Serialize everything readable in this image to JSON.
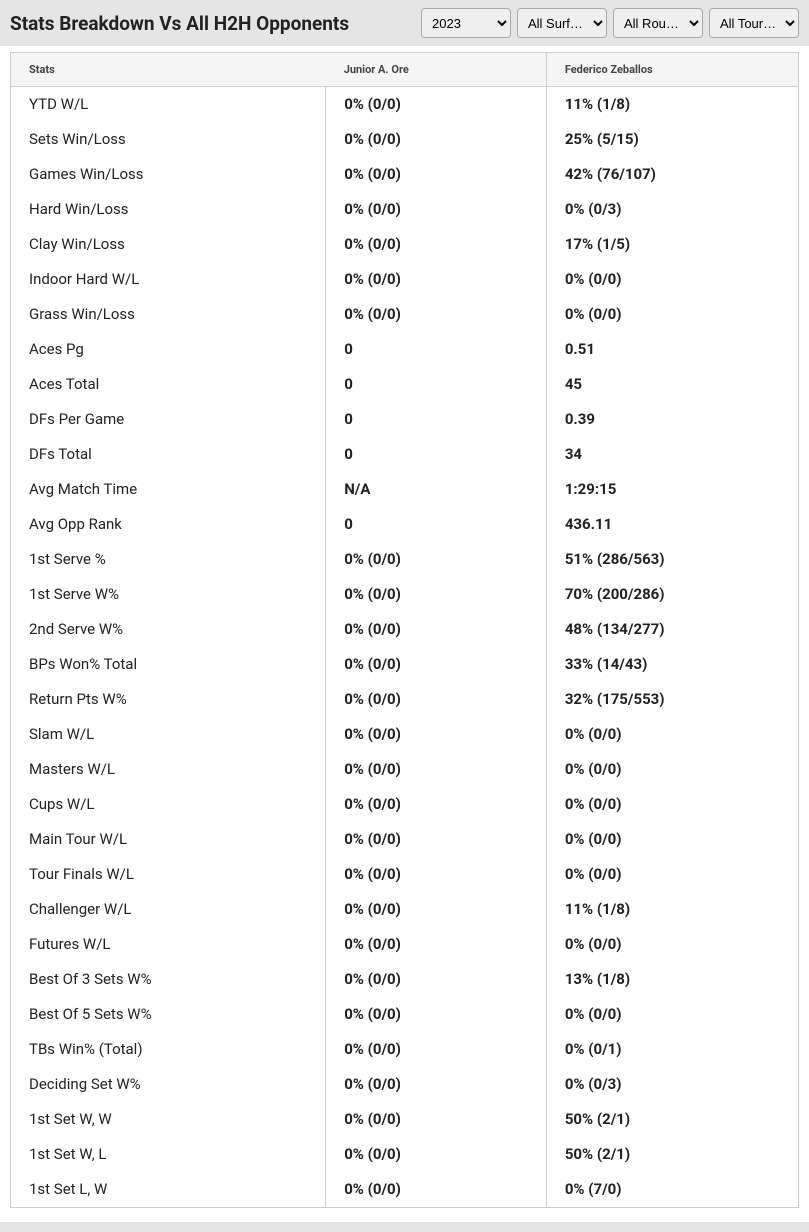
{
  "header": {
    "title": "Stats Breakdown Vs All H2H Opponents"
  },
  "filters": {
    "year": {
      "selected": "2023"
    },
    "surface": {
      "selected": "All Surf…"
    },
    "round": {
      "selected": "All Rou…"
    },
    "tour": {
      "selected": "All Tour…"
    }
  },
  "table": {
    "columns": {
      "stats": "Stats",
      "player1": "Junior A. Ore",
      "player2": "Federico Zeballos"
    },
    "header_bg": "#f5f5f5",
    "border_color": "#cccccc",
    "row_fontsize": 15,
    "header_fontsize": 11,
    "rows": [
      {
        "label": "YTD W/L",
        "p1": "0% (0/0)",
        "p2": "11% (1/8)"
      },
      {
        "label": "Sets Win/Loss",
        "p1": "0% (0/0)",
        "p2": "25% (5/15)"
      },
      {
        "label": "Games Win/Loss",
        "p1": "0% (0/0)",
        "p2": "42% (76/107)"
      },
      {
        "label": "Hard Win/Loss",
        "p1": "0% (0/0)",
        "p2": "0% (0/3)"
      },
      {
        "label": "Clay Win/Loss",
        "p1": "0% (0/0)",
        "p2": "17% (1/5)"
      },
      {
        "label": "Indoor Hard W/L",
        "p1": "0% (0/0)",
        "p2": "0% (0/0)"
      },
      {
        "label": "Grass Win/Loss",
        "p1": "0% (0/0)",
        "p2": "0% (0/0)"
      },
      {
        "label": "Aces Pg",
        "p1": "0",
        "p2": "0.51"
      },
      {
        "label": "Aces Total",
        "p1": "0",
        "p2": "45"
      },
      {
        "label": "DFs Per Game",
        "p1": "0",
        "p2": "0.39"
      },
      {
        "label": "DFs Total",
        "p1": "0",
        "p2": "34"
      },
      {
        "label": "Avg Match Time",
        "p1": "N/A",
        "p2": "1:29:15"
      },
      {
        "label": "Avg Opp Rank",
        "p1": "0",
        "p2": "436.11"
      },
      {
        "label": "1st Serve %",
        "p1": "0% (0/0)",
        "p2": "51% (286/563)"
      },
      {
        "label": "1st Serve W%",
        "p1": "0% (0/0)",
        "p2": "70% (200/286)"
      },
      {
        "label": "2nd Serve W%",
        "p1": "0% (0/0)",
        "p2": "48% (134/277)"
      },
      {
        "label": "BPs Won% Total",
        "p1": "0% (0/0)",
        "p2": "33% (14/43)"
      },
      {
        "label": "Return Pts W%",
        "p1": "0% (0/0)",
        "p2": "32% (175/553)"
      },
      {
        "label": "Slam W/L",
        "p1": "0% (0/0)",
        "p2": "0% (0/0)"
      },
      {
        "label": "Masters W/L",
        "p1": "0% (0/0)",
        "p2": "0% (0/0)"
      },
      {
        "label": "Cups W/L",
        "p1": "0% (0/0)",
        "p2": "0% (0/0)"
      },
      {
        "label": "Main Tour W/L",
        "p1": "0% (0/0)",
        "p2": "0% (0/0)"
      },
      {
        "label": "Tour Finals W/L",
        "p1": "0% (0/0)",
        "p2": "0% (0/0)"
      },
      {
        "label": "Challenger W/L",
        "p1": "0% (0/0)",
        "p2": "11% (1/8)"
      },
      {
        "label": "Futures W/L",
        "p1": "0% (0/0)",
        "p2": "0% (0/0)"
      },
      {
        "label": "Best Of 3 Sets W%",
        "p1": "0% (0/0)",
        "p2": "13% (1/8)"
      },
      {
        "label": "Best Of 5 Sets W%",
        "p1": "0% (0/0)",
        "p2": "0% (0/0)"
      },
      {
        "label": "TBs Win% (Total)",
        "p1": "0% (0/0)",
        "p2": "0% (0/1)"
      },
      {
        "label": "Deciding Set W%",
        "p1": "0% (0/0)",
        "p2": "0% (0/3)"
      },
      {
        "label": "1st Set W, W",
        "p1": "0% (0/0)",
        "p2": "50% (2/1)"
      },
      {
        "label": "1st Set W, L",
        "p1": "0% (0/0)",
        "p2": "50% (2/1)"
      },
      {
        "label": "1st Set L, W",
        "p1": "0% (0/0)",
        "p2": "0% (7/0)"
      }
    ]
  },
  "colors": {
    "header_bar_bg": "#e5e5e5",
    "body_bg": "#ffffff",
    "text": "#222222"
  }
}
